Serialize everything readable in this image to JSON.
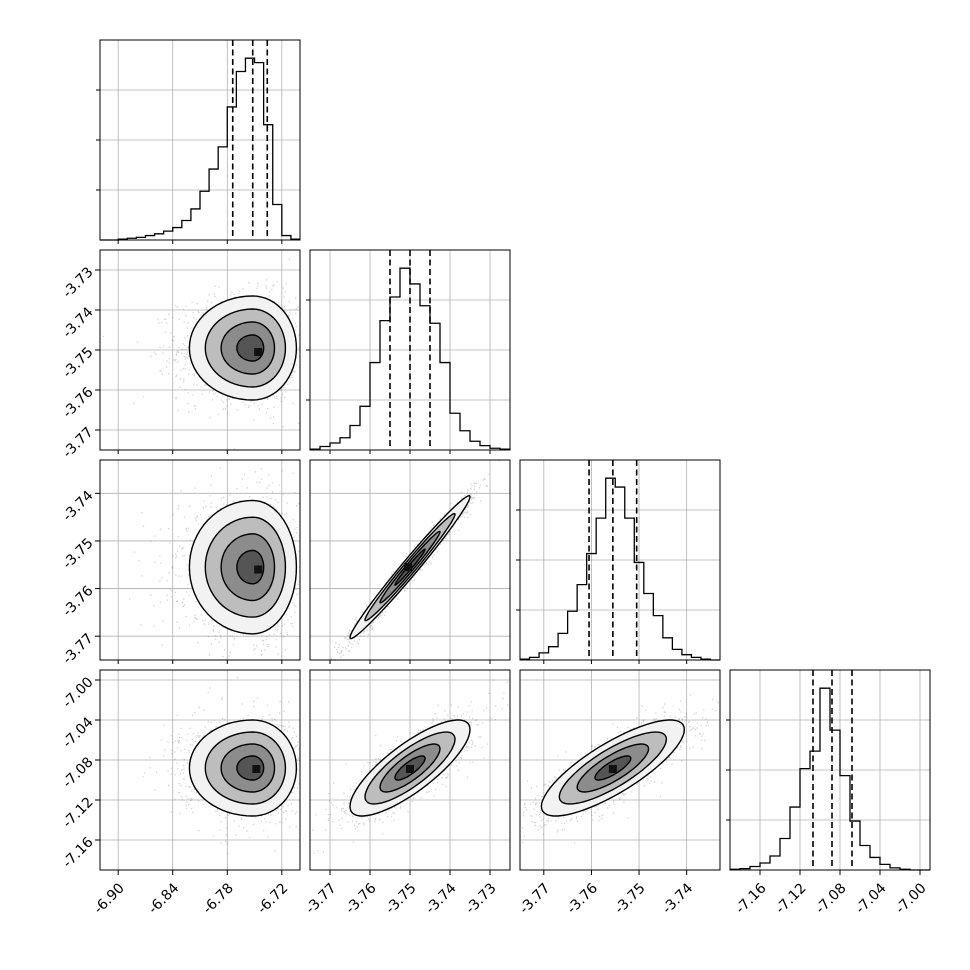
{
  "chart_data": {
    "type": "corner",
    "grid": true,
    "params": [
      {
        "range": [
          -6.92,
          -6.7
        ],
        "xticks": [
          "-6.90",
          "-6.84",
          "-6.78",
          "-6.72"
        ],
        "yticks": [],
        "quantiles": [
          -6.774,
          -6.752,
          -6.736
        ],
        "hist": {
          "edges": [
            -6.92,
            -6.91,
            -6.9,
            -6.89,
            -6.88,
            -6.87,
            -6.86,
            -6.85,
            -6.84,
            -6.83,
            -6.82,
            -6.81,
            -6.8,
            -6.79,
            -6.78,
            -6.77,
            -6.76,
            -6.75,
            -6.74,
            -6.73,
            -6.72,
            -6.71,
            -6.7
          ],
          "counts": [
            0,
            0,
            1,
            2,
            3,
            5,
            7,
            10,
            14,
            22,
            35,
            55,
            80,
            105,
            150,
            190,
            205,
            200,
            130,
            40,
            5,
            1
          ]
        }
      },
      {
        "range": [
          -3.775,
          -3.725
        ],
        "xticks": [
          "-3.77",
          "-3.76",
          "-3.75",
          "-3.74",
          "-3.73"
        ],
        "yticks": [
          "-3.73",
          "-3.74",
          "-3.75",
          "-3.76",
          "-3.77"
        ],
        "quantiles": [
          -3.755,
          -3.75,
          -3.745
        ],
        "hist": {
          "edges": [
            -3.775,
            -3.7725,
            -3.77,
            -3.7675,
            -3.765,
            -3.7625,
            -3.76,
            -3.7575,
            -3.755,
            -3.7525,
            -3.75,
            -3.7475,
            -3.745,
            -3.7425,
            -3.74,
            -3.7375,
            -3.735,
            -3.7325,
            -3.73,
            -3.7275,
            -3.725
          ],
          "counts": [
            1,
            4,
            8,
            14,
            28,
            50,
            100,
            148,
            175,
            208,
            190,
            165,
            145,
            100,
            42,
            22,
            10,
            5,
            2,
            1
          ]
        }
      },
      {
        "range": [
          -3.775,
          -3.733
        ],
        "xticks": [
          "-3.77",
          "-3.76",
          "-3.75",
          "-3.74"
        ],
        "yticks": [
          "-3.74",
          "-3.75",
          "-3.76",
          "-3.77"
        ],
        "quantiles": [
          -3.7605,
          -3.7555,
          -3.7505
        ],
        "hist": {
          "edges": [
            -3.775,
            -3.773,
            -3.771,
            -3.769,
            -3.767,
            -3.765,
            -3.763,
            -3.761,
            -3.759,
            -3.757,
            -3.755,
            -3.753,
            -3.751,
            -3.749,
            -3.747,
            -3.745,
            -3.743,
            -3.741,
            -3.739,
            -3.737,
            -3.735,
            -3.733
          ],
          "counts": [
            1,
            3,
            8,
            15,
            30,
            55,
            85,
            120,
            160,
            205,
            195,
            160,
            110,
            75,
            50,
            25,
            12,
            6,
            3,
            1,
            0
          ]
        }
      },
      {
        "range": [
          -7.19,
          -6.99
        ],
        "xticks": [
          "-7.16",
          "-7.12",
          "-7.08",
          "-7.04",
          "-7.00"
        ],
        "yticks": [
          "-7.00",
          "-7.04",
          "-7.08",
          "-7.12",
          "-7.16"
        ],
        "quantiles": [
          -7.107,
          -7.088,
          -7.068
        ],
        "hist": {
          "edges": [
            -7.19,
            -7.18,
            -7.17,
            -7.16,
            -7.15,
            -7.14,
            -7.13,
            -7.12,
            -7.11,
            -7.1,
            -7.09,
            -7.08,
            -7.07,
            -7.06,
            -7.05,
            -7.04,
            -7.03,
            -7.02,
            -7.01,
            -7.0,
            -6.99
          ],
          "counts": [
            1,
            2,
            5,
            10,
            20,
            45,
            90,
            145,
            170,
            260,
            200,
            135,
            70,
            35,
            18,
            8,
            3,
            1,
            0,
            0
          ]
        }
      }
    ],
    "pairs": [
      {
        "row": 1,
        "col": 0,
        "mean": [
          -6.752,
          -3.7495
        ],
        "sd": [
          0.024,
          0.0065
        ],
        "rho": 0.0,
        "peak": [
          -6.746,
          -3.7505
        ]
      },
      {
        "row": 2,
        "col": 0,
        "mean": [
          -6.752,
          -3.7555
        ],
        "sd": [
          0.024,
          0.007
        ],
        "rho": 0.0,
        "peak": [
          -6.746,
          -3.756
        ]
      },
      {
        "row": 2,
        "col": 1,
        "mean": [
          -3.75,
          -3.7555
        ],
        "sd": [
          0.0075,
          0.0075
        ],
        "rho": 0.985,
        "peak": [
          -3.7505,
          -3.7555
        ]
      },
      {
        "row": 3,
        "col": 0,
        "mean": [
          -6.752,
          -7.088
        ],
        "sd": [
          0.024,
          0.024
        ],
        "rho": 0.0,
        "peak": [
          -6.748,
          -7.089
        ]
      },
      {
        "row": 3,
        "col": 1,
        "mean": [
          -3.75,
          -7.088
        ],
        "sd": [
          0.0075,
          0.024
        ],
        "rho": 0.8,
        "peak": [
          -3.75,
          -7.089
        ]
      },
      {
        "row": 3,
        "col": 2,
        "mean": [
          -3.7555,
          -7.088
        ],
        "sd": [
          0.0075,
          0.024
        ],
        "rho": 0.8,
        "peak": [
          -3.7555,
          -7.089
        ]
      }
    ]
  }
}
